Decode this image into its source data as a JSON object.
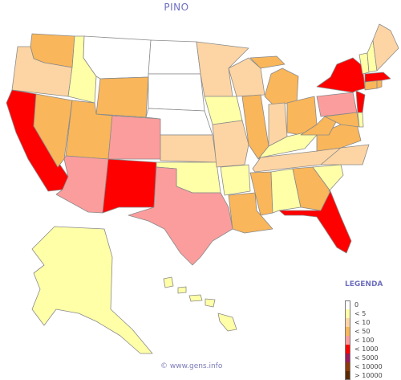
{
  "title": "PINO",
  "legend": {
    "title": "LEGENDA",
    "items": [
      {
        "label": "0",
        "color": "#ffffff"
      },
      {
        "label": "< 5",
        "color": "#ffffa8"
      },
      {
        "label": "< 10",
        "color": "#fdd5a4"
      },
      {
        "label": "< 50",
        "color": "#f9b65a"
      },
      {
        "label": "< 100",
        "color": "#fc9d9d"
      },
      {
        "label": "< 1000",
        "color": "#fe0000"
      },
      {
        "label": "< 5000",
        "color": "#9a1a5a"
      },
      {
        "label": "< 10000",
        "color": "#8b3a0a"
      },
      {
        "label": "> 10000",
        "color": "#5a2a00"
      }
    ]
  },
  "footer": "© www.gens.info",
  "states": {
    "WA": {
      "class": "< 50",
      "color": "#f9b65a"
    },
    "OR": {
      "class": "< 10",
      "color": "#fdd5a4"
    },
    "CA": {
      "class": "< 1000",
      "color": "#fe0000"
    },
    "NV": {
      "class": "< 50",
      "color": "#f9b65a"
    },
    "ID": {
      "class": "< 5",
      "color": "#ffffa8"
    },
    "MT": {
      "class": "0",
      "color": "#ffffff"
    },
    "WY": {
      "class": "< 50",
      "color": "#f9b65a"
    },
    "UT": {
      "class": "< 50",
      "color": "#f9b65a"
    },
    "AZ": {
      "class": "< 100",
      "color": "#fc9d9d"
    },
    "CO": {
      "class": "< 100",
      "color": "#fc9d9d"
    },
    "NM": {
      "class": "< 1000",
      "color": "#fe0000"
    },
    "ND": {
      "class": "0",
      "color": "#ffffff"
    },
    "SD": {
      "class": "0",
      "color": "#ffffff"
    },
    "NE": {
      "class": "0",
      "color": "#ffffff"
    },
    "KS": {
      "class": "< 10",
      "color": "#fdd5a4"
    },
    "OK": {
      "class": "< 5",
      "color": "#ffffa8"
    },
    "TX": {
      "class": "< 100",
      "color": "#fc9d9d"
    },
    "MN": {
      "class": "< 10",
      "color": "#fdd5a4"
    },
    "IA": {
      "class": "< 5",
      "color": "#ffffa8"
    },
    "MO": {
      "class": "< 10",
      "color": "#fdd5a4"
    },
    "AR": {
      "class": "< 5",
      "color": "#ffffa8"
    },
    "LA": {
      "class": "< 50",
      "color": "#f9b65a"
    },
    "WI": {
      "class": "< 10",
      "color": "#fdd5a4"
    },
    "IL": {
      "class": "< 50",
      "color": "#f9b65a"
    },
    "MI": {
      "class": "< 50",
      "color": "#f9b65a"
    },
    "IN": {
      "class": "< 10",
      "color": "#fdd5a4"
    },
    "OH": {
      "class": "< 50",
      "color": "#f9b65a"
    },
    "KY": {
      "class": "< 5",
      "color": "#ffffa8"
    },
    "TN": {
      "class": "< 10",
      "color": "#fdd5a4"
    },
    "MS": {
      "class": "< 50",
      "color": "#f9b65a"
    },
    "AL": {
      "class": "< 5",
      "color": "#ffffa8"
    },
    "GA": {
      "class": "< 50",
      "color": "#f9b65a"
    },
    "FL": {
      "class": "< 1000",
      "color": "#fe0000"
    },
    "SC": {
      "class": "< 5",
      "color": "#ffffa8"
    },
    "NC": {
      "class": "< 10",
      "color": "#fdd5a4"
    },
    "VA": {
      "class": "< 50",
      "color": "#f9b65a"
    },
    "WV": {
      "class": "< 50",
      "color": "#f9b65a"
    },
    "PA": {
      "class": "< 100",
      "color": "#fc9d9d"
    },
    "NY": {
      "class": "< 1000",
      "color": "#fe0000"
    },
    "NJ": {
      "class": "< 1000",
      "color": "#fe0000"
    },
    "DE": {
      "class": "< 5",
      "color": "#ffffa8"
    },
    "MD": {
      "class": "< 50",
      "color": "#f9b65a"
    },
    "CT": {
      "class": "< 50",
      "color": "#f9b65a"
    },
    "RI": {
      "class": "< 50",
      "color": "#f9b65a"
    },
    "MA": {
      "class": "< 1000",
      "color": "#fe0000"
    },
    "VT": {
      "class": "< 5",
      "color": "#ffffa8"
    },
    "NH": {
      "class": "< 5",
      "color": "#ffffa8"
    },
    "ME": {
      "class": "< 10",
      "color": "#fdd5a4"
    },
    "AK": {
      "class": "< 5",
      "color": "#ffffa8"
    },
    "HI": {
      "class": "< 5",
      "color": "#ffffa8"
    }
  }
}
